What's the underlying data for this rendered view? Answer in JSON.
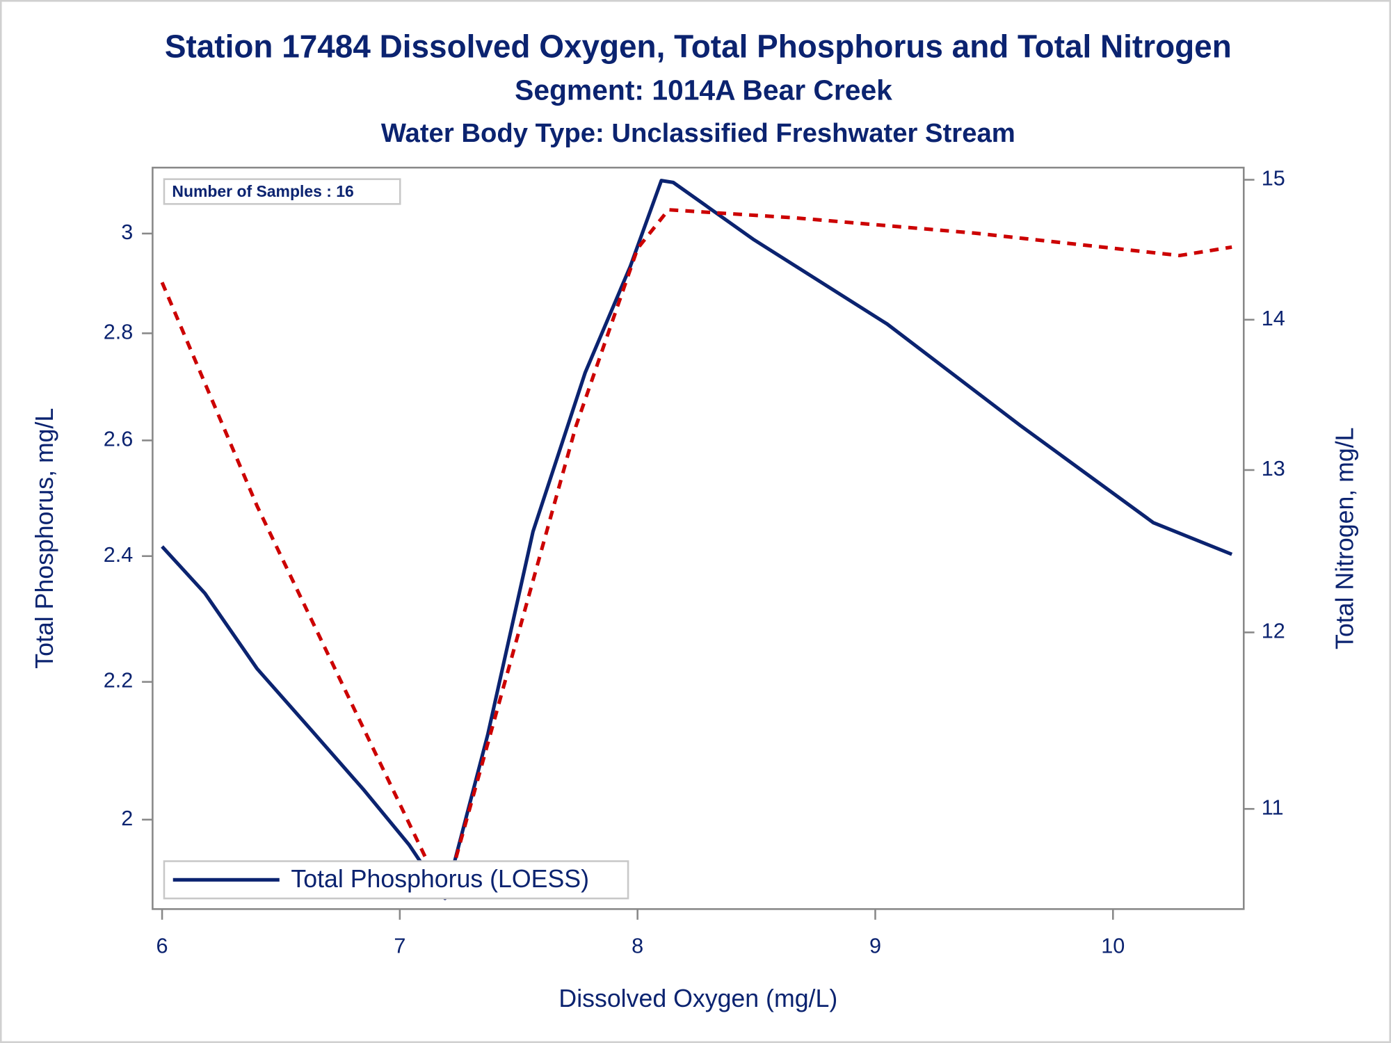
{
  "chart_data": {
    "type": "line",
    "title": "Station 17484  Dissolved Oxygen, Total Phosphorus and Total Nitrogen",
    "subtitle": "Segment: 1014A  Bear Creek",
    "subtitle2": "Water Body Type: Unclassified Freshwater Stream",
    "annotation": "Number of Samples : 16",
    "x_label": "Dissolved Oxygen (mg/L)",
    "y_label": "Total Phosphorus, mg/L",
    "y2_label": "Total Nitrogen, mg/L",
    "xlim": [
      5.96,
      10.55
    ],
    "xticks": [
      6,
      7,
      8,
      9,
      10
    ],
    "ylim": [
      1.88,
      3.14
    ],
    "yticks": [
      2,
      2.2,
      2.4,
      2.6,
      2.8,
      3
    ],
    "y_log": true,
    "y2lim": [
      10.47,
      15.09
    ],
    "y2ticks": [
      11,
      12,
      13,
      14,
      15
    ],
    "y2_log": true,
    "legend": "bottom-left",
    "series": [
      {
        "name": "Total Phosphorus (LOESS)",
        "color": "#0b2370",
        "dash": false,
        "x": [
          6.0,
          6.18,
          6.4,
          6.63,
          6.85,
          7.04,
          7.19,
          7.37,
          7.56,
          7.78,
          7.97,
          8.1,
          8.15,
          8.49,
          9.05,
          9.61,
          10.17,
          10.5
        ],
        "values": [
          2.416,
          2.339,
          2.22,
          2.127,
          2.041,
          1.965,
          1.894,
          2.121,
          2.441,
          2.725,
          2.933,
          3.112,
          3.108,
          2.987,
          2.818,
          2.627,
          2.456,
          2.403
        ]
      },
      {
        "color": "#cc0000",
        "dash": true,
        "axis": "y2",
        "x": [
          6.0,
          6.4,
          6.81,
          7.15,
          7.19,
          7.45,
          7.74,
          8.0,
          8.13,
          8.67,
          9.42,
          10.28,
          10.5
        ],
        "values": [
          14.26,
          12.77,
          11.55,
          10.63,
          10.53,
          11.75,
          13.28,
          14.5,
          14.78,
          14.72,
          14.61,
          14.45,
          14.51
        ]
      }
    ]
  }
}
